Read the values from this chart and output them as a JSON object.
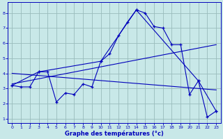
{
  "xlabel": "Graphe des températures (°c)",
  "xlim": [
    -0.5,
    23.5
  ],
  "ylim": [
    0.7,
    8.7
  ],
  "yticks": [
    1,
    2,
    3,
    4,
    5,
    6,
    7,
    8
  ],
  "xticks": [
    0,
    1,
    2,
    3,
    4,
    5,
    6,
    7,
    8,
    9,
    10,
    11,
    12,
    13,
    14,
    15,
    16,
    17,
    18,
    19,
    20,
    21,
    22,
    23
  ],
  "bg_color": "#c8e8e8",
  "line_color": "#0000bb",
  "grid_color": "#99bbbb",
  "line1_x": [
    0,
    1,
    2,
    3,
    4,
    5,
    6,
    7,
    8,
    9,
    10,
    11,
    12,
    13,
    14,
    15,
    16,
    17,
    18,
    19,
    20,
    21,
    22,
    23
  ],
  "line1_y": [
    3.2,
    3.1,
    3.1,
    4.1,
    4.1,
    2.1,
    2.7,
    2.6,
    3.3,
    3.1,
    4.8,
    5.3,
    6.5,
    7.4,
    8.2,
    8.0,
    7.1,
    7.0,
    5.9,
    5.9,
    2.6,
    3.5,
    1.1,
    1.5
  ],
  "line2_x": [
    0,
    3,
    10,
    14,
    21,
    23
  ],
  "line2_y": [
    3.2,
    4.1,
    4.8,
    8.2,
    3.5,
    1.5
  ],
  "line3_x": [
    0,
    23
  ],
  "line3_y": [
    3.3,
    5.9
  ],
  "line4_x": [
    0,
    23
  ],
  "line4_y": [
    4.0,
    2.9
  ]
}
